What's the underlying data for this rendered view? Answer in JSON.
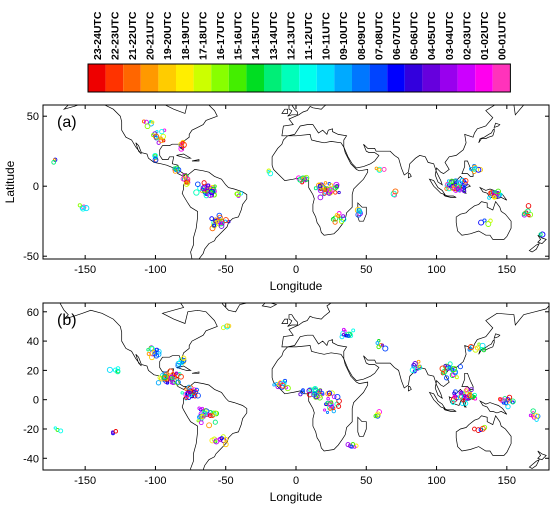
{
  "chart_data": {
    "type": "scatter",
    "legend": {
      "placement": "top",
      "labels": [
        "23-24UTC",
        "22-23UTC",
        "21-22UTC",
        "20-21UTC",
        "19-20UTC",
        "18-19UTC",
        "17-18UTC",
        "16-17UTC",
        "15-16UTC",
        "14-15UTC",
        "13-14UTC",
        "12-13UTC",
        "11-12UTC",
        "10-11UTC",
        "09-10UTC",
        "08-09UTC",
        "07-08UTC",
        "06-07UTC",
        "05-06UTC",
        "04-05UTC",
        "03-04UTC",
        "02-03UTC",
        "01-02UTC",
        "00-01UTC"
      ],
      "colors": [
        "#ee0000",
        "#ff3300",
        "#ff6600",
        "#ff9900",
        "#ffcc00",
        "#ffee00",
        "#ccff00",
        "#88ff00",
        "#44ee00",
        "#00dd22",
        "#00ee77",
        "#00ffbb",
        "#00ffee",
        "#00ddff",
        "#00aaff",
        "#0077ff",
        "#0044ff",
        "#0000ff",
        "#3300dd",
        "#6600dd",
        "#9900ee",
        "#cc00ff",
        "#ff00ee",
        "#ff33bb"
      ]
    },
    "panels": [
      {
        "label": "(a)",
        "xlabel": "Longitude",
        "ylabel": "Latitude",
        "xlim": [
          -180,
          180
        ],
        "ylim": [
          -52,
          58
        ],
        "xticks": [
          -150,
          -100,
          -50,
          0,
          50,
          100,
          150
        ],
        "yticks": [
          -50,
          0,
          50
        ],
        "grid": false,
        "clusters": [
          {
            "lon": -62,
            "lat": -3,
            "count": 40,
            "spread": [
              10,
              8
            ]
          },
          {
            "lon": -55,
            "lat": -25,
            "count": 28,
            "spread": [
              8,
              6
            ]
          },
          {
            "lon": -78,
            "lat": 5,
            "count": 16,
            "spread": [
              5,
              5
            ]
          },
          {
            "lon": -85,
            "lat": 12,
            "count": 8,
            "spread": [
              5,
              3
            ]
          },
          {
            "lon": -100,
            "lat": 20,
            "count": 6,
            "spread": [
              4,
              3
            ]
          },
          {
            "lon": -98,
            "lat": 35,
            "count": 14,
            "spread": [
              8,
              6
            ]
          },
          {
            "lon": -80,
            "lat": 30,
            "count": 8,
            "spread": [
              5,
              4
            ]
          },
          {
            "lon": -105,
            "lat": 45,
            "count": 6,
            "spread": [
              6,
              3
            ]
          },
          {
            "lon": -172,
            "lat": 18,
            "count": 3,
            "spread": [
              2,
              2
            ]
          },
          {
            "lon": -150,
            "lat": -15,
            "count": 5,
            "spread": [
              5,
              2
            ]
          },
          {
            "lon": -40,
            "lat": -5,
            "count": 4,
            "spread": [
              4,
              3
            ]
          },
          {
            "lon": -20,
            "lat": 10,
            "count": 3,
            "spread": [
              4,
              2
            ]
          },
          {
            "lon": 5,
            "lat": 5,
            "count": 12,
            "spread": [
              6,
              3
            ]
          },
          {
            "lon": 22,
            "lat": -2,
            "count": 40,
            "spread": [
              12,
              8
            ]
          },
          {
            "lon": 30,
            "lat": -22,
            "count": 10,
            "spread": [
              6,
              6
            ]
          },
          {
            "lon": 45,
            "lat": -18,
            "count": 6,
            "spread": [
              3,
              5
            ]
          },
          {
            "lon": 60,
            "lat": 12,
            "count": 4,
            "spread": [
              6,
              3
            ]
          },
          {
            "lon": 72,
            "lat": -5,
            "count": 3,
            "spread": [
              5,
              3
            ]
          },
          {
            "lon": 115,
            "lat": 0,
            "count": 40,
            "spread": [
              12,
              7
            ]
          },
          {
            "lon": 142,
            "lat": -6,
            "count": 20,
            "spread": [
              8,
              4
            ]
          },
          {
            "lon": 128,
            "lat": 12,
            "count": 8,
            "spread": [
              6,
              5
            ]
          },
          {
            "lon": 165,
            "lat": -18,
            "count": 8,
            "spread": [
              6,
              6
            ]
          },
          {
            "lon": 135,
            "lat": -25,
            "count": 4,
            "spread": [
              6,
              4
            ]
          },
          {
            "lon": 175,
            "lat": -35,
            "count": 2,
            "spread": [
              2,
              2
            ]
          }
        ]
      },
      {
        "label": "(b)",
        "xlabel": "Longitude",
        "ylabel": "",
        "xlim": [
          -180,
          180
        ],
        "ylim": [
          -48,
          66
        ],
        "xticks": [
          -150,
          -100,
          -50,
          0,
          50,
          100,
          150
        ],
        "yticks": [
          -40,
          -20,
          0,
          20,
          40,
          60
        ],
        "grid": false,
        "clusters": [
          {
            "lon": -90,
            "lat": 15,
            "count": 40,
            "spread": [
              10,
              6
            ]
          },
          {
            "lon": -75,
            "lat": 5,
            "count": 30,
            "spread": [
              8,
              6
            ]
          },
          {
            "lon": -65,
            "lat": -10,
            "count": 30,
            "spread": [
              10,
              10
            ]
          },
          {
            "lon": -55,
            "lat": -28,
            "count": 12,
            "spread": [
              8,
              5
            ]
          },
          {
            "lon": -100,
            "lat": 32,
            "count": 14,
            "spread": [
              8,
              6
            ]
          },
          {
            "lon": -80,
            "lat": 25,
            "count": 10,
            "spread": [
              6,
              4
            ]
          },
          {
            "lon": -130,
            "lat": 20,
            "count": 5,
            "spread": [
              6,
              4
            ]
          },
          {
            "lon": -170,
            "lat": -20,
            "count": 3,
            "spread": [
              4,
              2
            ]
          },
          {
            "lon": -130,
            "lat": -22,
            "count": 3,
            "spread": [
              3,
              2
            ]
          },
          {
            "lon": -50,
            "lat": 50,
            "count": 4,
            "spread": [
              4,
              3
            ]
          },
          {
            "lon": -10,
            "lat": 10,
            "count": 14,
            "spread": [
              8,
              4
            ]
          },
          {
            "lon": 15,
            "lat": 5,
            "count": 30,
            "spread": [
              14,
              6
            ]
          },
          {
            "lon": 25,
            "lat": -5,
            "count": 20,
            "spread": [
              10,
              8
            ]
          },
          {
            "lon": 40,
            "lat": -30,
            "count": 6,
            "spread": [
              5,
              4
            ]
          },
          {
            "lon": 35,
            "lat": 45,
            "count": 12,
            "spread": [
              8,
              4
            ]
          },
          {
            "lon": 60,
            "lat": 38,
            "count": 6,
            "spread": [
              6,
              4
            ]
          },
          {
            "lon": 85,
            "lat": 22,
            "count": 12,
            "spread": [
              8,
              5
            ]
          },
          {
            "lon": 110,
            "lat": 20,
            "count": 22,
            "spread": [
              10,
              6
            ]
          },
          {
            "lon": 120,
            "lat": 2,
            "count": 36,
            "spread": [
              14,
              7
            ]
          },
          {
            "lon": 130,
            "lat": 35,
            "count": 10,
            "spread": [
              8,
              5
            ]
          },
          {
            "lon": 150,
            "lat": 0,
            "count": 14,
            "spread": [
              10,
              6
            ]
          },
          {
            "lon": 170,
            "lat": -10,
            "count": 8,
            "spread": [
              6,
              6
            ]
          },
          {
            "lon": 130,
            "lat": -20,
            "count": 5,
            "spread": [
              6,
              4
            ]
          },
          {
            "lon": 60,
            "lat": -10,
            "count": 5,
            "spread": [
              6,
              4
            ]
          }
        ]
      }
    ]
  }
}
